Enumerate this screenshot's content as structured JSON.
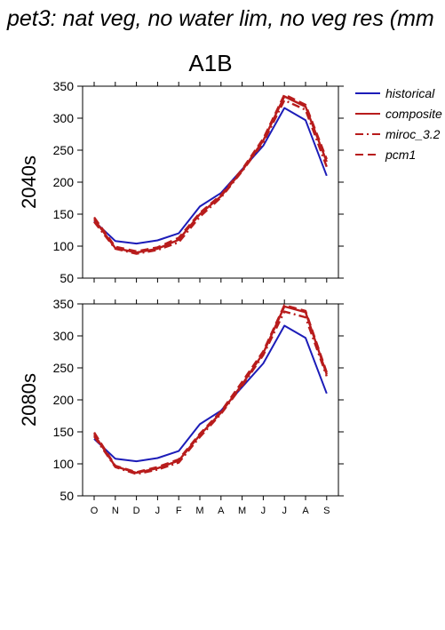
{
  "page_title": "pet3: nat veg, no water lim, no veg res (mm",
  "scenario_title": "A1B",
  "colors": {
    "historical": "#1c1cb8",
    "future": "#b81c1c"
  },
  "legend": [
    {
      "label": "historical",
      "color": "#1c1cb8",
      "dash": "solid"
    },
    {
      "label": "composite",
      "color": "#b81c1c",
      "dash": "solid"
    },
    {
      "label": "miroc_3.2",
      "color": "#b81c1c",
      "dash": "dashdot"
    },
    {
      "label": "pcm1",
      "color": "#b81c1c",
      "dash": "dashed"
    }
  ],
  "chart_data": [
    {
      "type": "line",
      "title": "A1B",
      "ylabel": "2040s",
      "categories": [
        "O",
        "N",
        "D",
        "J",
        "F",
        "M",
        "A",
        "M",
        "J",
        "J",
        "A",
        "S"
      ],
      "ylim": [
        50,
        350
      ],
      "yticks": [
        50,
        100,
        150,
        200,
        250,
        300,
        350
      ],
      "series": [
        {
          "name": "historical",
          "values": [
            139,
            108,
            104,
            109,
            120,
            162,
            183,
            220,
            257,
            316,
            297,
            210
          ]
        },
        {
          "name": "composite",
          "values": [
            142,
            97,
            90,
            96,
            110,
            150,
            178,
            218,
            265,
            334,
            318,
            232
          ]
        },
        {
          "name": "miroc_3.2",
          "values": [
            138,
            96,
            88,
            94,
            106,
            146,
            176,
            217,
            262,
            328,
            313,
            224
          ]
        },
        {
          "name": "pcm1",
          "values": [
            145,
            99,
            92,
            98,
            113,
            152,
            180,
            220,
            268,
            337,
            321,
            236
          ]
        }
      ]
    },
    {
      "type": "line",
      "ylabel": "2080s",
      "categories": [
        "O",
        "N",
        "D",
        "J",
        "F",
        "M",
        "A",
        "M",
        "J",
        "J",
        "A",
        "S"
      ],
      "ylim": [
        50,
        350
      ],
      "yticks": [
        50,
        100,
        150,
        200,
        250,
        300,
        350
      ],
      "series": [
        {
          "name": "historical",
          "values": [
            139,
            108,
            104,
            109,
            120,
            162,
            183,
            220,
            257,
            316,
            297,
            210
          ]
        },
        {
          "name": "composite",
          "values": [
            146,
            96,
            86,
            93,
            105,
            145,
            180,
            224,
            273,
            346,
            337,
            240
          ]
        },
        {
          "name": "miroc_3.2",
          "values": [
            143,
            95,
            84,
            91,
            102,
            142,
            178,
            222,
            270,
            338,
            329,
            237
          ]
        },
        {
          "name": "pcm1",
          "values": [
            149,
            97,
            87,
            95,
            107,
            147,
            182,
            228,
            276,
            348,
            339,
            243
          ]
        }
      ]
    }
  ]
}
